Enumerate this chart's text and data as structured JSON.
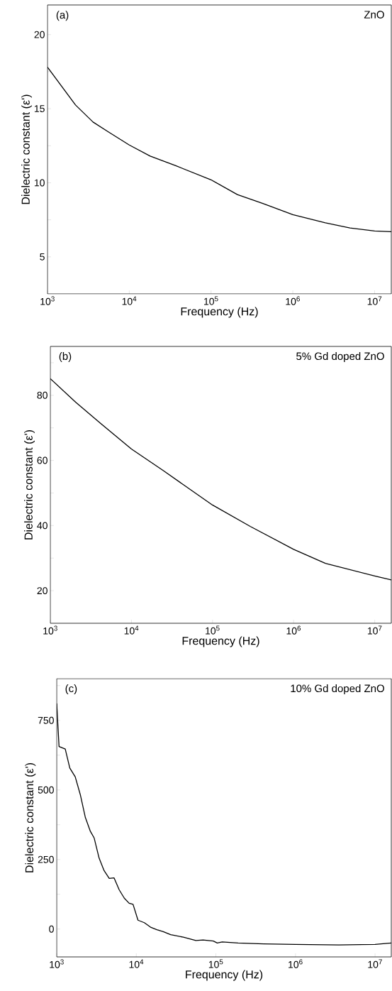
{
  "chart_data": [
    {
      "type": "line",
      "xlabel": "Frequency (Hz)",
      "ylabel": "Dielectric constant (ε')",
      "annotations": [
        "(a)",
        "ZnO"
      ],
      "log": "x",
      "color": "#000000",
      "x": [
        1000,
        2200,
        3600,
        5500,
        10000,
        18000,
        37000,
        100000,
        210000,
        430000,
        1000000,
        2500000,
        5000000,
        10000000,
        16000000
      ],
      "values": [
        17.8,
        15.25,
        14.1,
        13.45,
        12.55,
        11.8,
        11.15,
        10.2,
        9.2,
        8.6,
        7.85,
        7.3,
        6.95,
        6.75,
        6.7
      ],
      "xlim": [
        1000,
        16000000
      ],
      "ylim": [
        2.5,
        22
      ],
      "xticks": [
        {
          "value": 1000,
          "label": "10$^{3}$"
        },
        {
          "value": 10000,
          "label": "10$^{4}$"
        },
        {
          "value": 100000,
          "label": "10$^{5}$"
        },
        {
          "value": 1000000,
          "label": "10$^{6}$"
        },
        {
          "value": 10000000,
          "label": "10$^{7}$"
        }
      ],
      "yticks": [
        5,
        {
          "value": 7.5,
          "label": null
        },
        10,
        {
          "value": 12.5,
          "label": null
        },
        15,
        {
          "value": 17.5,
          "label": null
        },
        20
      ]
    },
    {
      "type": "line",
      "xlabel": "Frequency (Hz)",
      "ylabel": "Dielectric constant (ε')",
      "annotations": [
        "(b)",
        "5% Gd doped ZnO"
      ],
      "log": "x",
      "color": "#000000",
      "x": [
        1000,
        2050,
        4200,
        10000,
        24600,
        100000,
        294000,
        1000000,
        2470000,
        10000000,
        16000000
      ],
      "values": [
        85.1,
        77.9,
        71.3,
        63.5,
        56.9,
        46.3,
        39.7,
        32.7,
        28.4,
        24.5,
        23.3
      ],
      "xlim": [
        1000,
        16000000
      ],
      "ylim": [
        10,
        95
      ],
      "xticks": [
        {
          "value": 1000,
          "label": "10$^{3}$"
        },
        {
          "value": 10000,
          "label": "10$^{4}$"
        },
        {
          "value": 100000,
          "label": "10$^{5}$"
        },
        {
          "value": 1000000,
          "label": "10$^{6}$"
        },
        {
          "value": 10000000,
          "label": "10$^{7}$"
        }
      ],
      "yticks": [
        20,
        {
          "value": 30,
          "label": null
        },
        40,
        {
          "value": 50,
          "label": null
        },
        60,
        {
          "value": 70,
          "label": null
        },
        80,
        {
          "value": 90,
          "label": null
        }
      ]
    },
    {
      "type": "line",
      "xlabel": "Frequency (Hz)",
      "ylabel": "Dielectric constant (ε')",
      "annotations": [
        "(c)",
        "10% Gd doped ZnO"
      ],
      "log": "x",
      "color": "#000000",
      "x": [
        1000,
        1070,
        1280,
        1460,
        1710,
        1980,
        2290,
        2650,
        2950,
        3410,
        3940,
        4570,
        5260,
        6100,
        7070,
        8130,
        9100,
        10500,
        12600,
        15100,
        18100,
        21800,
        27000,
        39000,
        56000,
        69000,
        93000,
        104000,
        120000,
        190000,
        396000,
        1000000,
        3500000,
        10000000,
        16000000
      ],
      "values": [
        811,
        656,
        647,
        579,
        547,
        483,
        401,
        351,
        328,
        255,
        210,
        182,
        184,
        141,
        111,
        93,
        89,
        32,
        23,
        7,
        -2,
        -9,
        -20,
        -29,
        -41,
        -39,
        -43,
        -50,
        -46,
        -50,
        -53,
        -55,
        -57,
        -55,
        -50
      ],
      "xlim": [
        1000,
        16000000
      ],
      "ylim": [
        -100,
        900
      ],
      "xticks": [
        {
          "value": 1000,
          "label": "10$^{3}$"
        },
        {
          "value": 10000,
          "label": "10$^{4}$"
        },
        {
          "value": 100000,
          "label": "10$^{5}$"
        },
        {
          "value": 1000000,
          "label": "10$^{6}$"
        },
        {
          "value": 10000000,
          "label": "10$^{7}$"
        }
      ],
      "yticks": [
        0,
        {
          "value": 125,
          "label": null
        },
        250,
        {
          "value": 375,
          "label": null
        },
        500,
        {
          "value": 625,
          "label": null
        },
        750,
        {
          "value": 875,
          "label": null
        }
      ]
    }
  ]
}
